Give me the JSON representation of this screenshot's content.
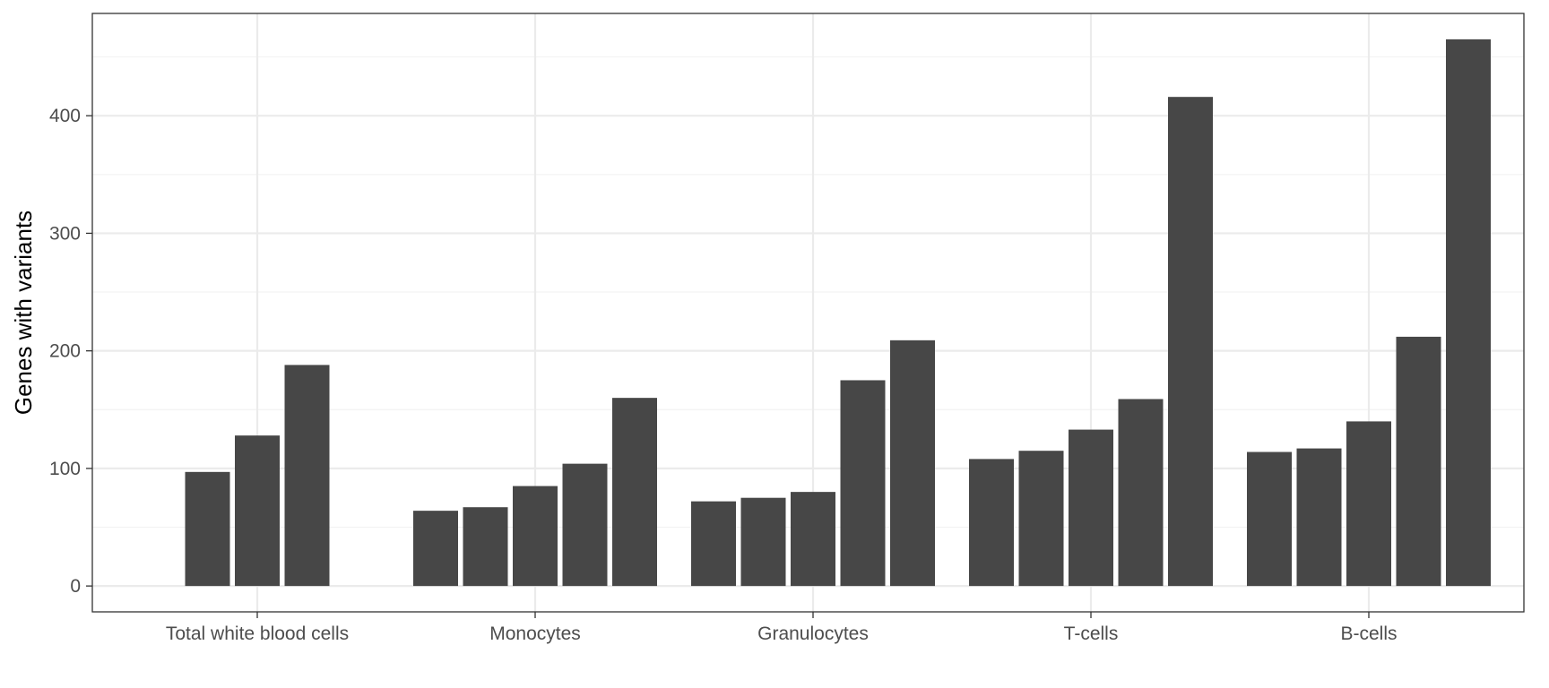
{
  "chart_data": {
    "type": "bar",
    "title": "",
    "xlabel": "",
    "ylabel": "Genes with variants",
    "ylim": [
      -22,
      487
    ],
    "yticks": [
      0,
      100,
      200,
      300,
      400
    ],
    "grid": true,
    "legend": "none",
    "colors": {
      "bar": "#474747",
      "grid_major": "#ebebeb",
      "grid_minor": "#f3f3f3",
      "border": "#333333",
      "tick_text": "#4d4d4d"
    },
    "categories": [
      "Total white blood cells",
      "Monocytes",
      "Granulocytes",
      "T-cells",
      "B-cells"
    ],
    "groups": [
      {
        "category": "Total white blood cells",
        "values": [
          97,
          128,
          188
        ]
      },
      {
        "category": "Monocytes",
        "values": [
          64,
          67,
          85,
          104,
          160
        ]
      },
      {
        "category": "Granulocytes",
        "values": [
          72,
          75,
          80,
          175,
          209
        ]
      },
      {
        "category": "T-cells",
        "values": [
          108,
          115,
          133,
          159,
          416
        ]
      },
      {
        "category": "B-cells",
        "values": [
          114,
          117,
          140,
          212,
          465
        ]
      }
    ]
  }
}
